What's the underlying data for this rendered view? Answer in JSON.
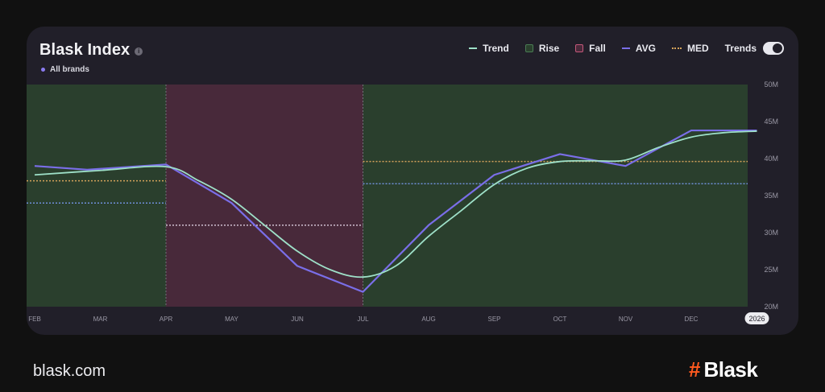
{
  "header": {
    "title": "Blask Index",
    "subtitle": "All brands",
    "info_icon": "info-icon"
  },
  "legend": {
    "items": [
      {
        "label": "Trend",
        "color": "#9ee0c8",
        "kind": "line"
      },
      {
        "label": "Rise",
        "color": "#4a7c54",
        "kind": "box"
      },
      {
        "label": "Fall",
        "color": "#c4587a",
        "kind": "box"
      },
      {
        "label": "AVG",
        "color": "#7a6ee8",
        "kind": "line"
      },
      {
        "label": "MED",
        "color": "#d4a25a",
        "kind": "dash"
      }
    ],
    "toggle_label": "Trends",
    "toggle_on": true
  },
  "footer": {
    "site": "blask.com",
    "brand_symbol": "#",
    "brand_name": "Blask"
  },
  "chart_data": {
    "type": "line",
    "title": "Blask Index",
    "x_tick_labels": [
      "FEB",
      "MAR",
      "APR",
      "MAY",
      "JUN",
      "JUL",
      "AUG",
      "SEP",
      "OCT",
      "NOV",
      "DEC",
      "2026"
    ],
    "y_tick_labels": [
      "50M",
      "45M",
      "40M",
      "35M",
      "30M",
      "25M",
      "20M"
    ],
    "ylim": [
      20,
      50
    ],
    "y_unit": "M",
    "series": [
      {
        "name": "All brands",
        "color": "#7a6ee8",
        "points": [
          [
            0,
            39.0
          ],
          [
            0.8,
            38.5
          ],
          [
            2,
            39.2
          ],
          [
            3,
            34.0
          ],
          [
            4,
            25.5
          ],
          [
            5,
            22.0
          ],
          [
            6,
            31.0
          ],
          [
            7,
            37.8
          ],
          [
            8,
            40.6
          ],
          [
            9,
            39.0
          ],
          [
            10,
            43.8
          ],
          [
            11,
            43.8
          ]
        ]
      },
      {
        "name": "Trend",
        "color": "#9ee0c8",
        "points": [
          [
            0,
            37.8
          ],
          [
            1,
            38.4
          ],
          [
            2,
            38.9
          ],
          [
            2.5,
            37.0
          ],
          [
            3,
            34.5
          ],
          [
            3.5,
            31.0
          ],
          [
            4,
            27.5
          ],
          [
            4.5,
            25.0
          ],
          [
            5,
            24.0
          ],
          [
            5.5,
            25.5
          ],
          [
            6,
            29.5
          ],
          [
            6.5,
            33.0
          ],
          [
            7,
            36.5
          ],
          [
            7.5,
            38.7
          ],
          [
            8,
            39.6
          ],
          [
            8.5,
            39.7
          ],
          [
            9,
            39.8
          ],
          [
            9.5,
            41.5
          ],
          [
            10,
            42.9
          ],
          [
            10.5,
            43.5
          ],
          [
            11,
            43.7
          ]
        ]
      }
    ],
    "regions": [
      {
        "type": "Rise",
        "from": 0,
        "to": 2,
        "color": "#2a3f2d",
        "avg": 34.0,
        "med": 37.0
      },
      {
        "type": "Fall",
        "from": 2,
        "to": 5,
        "color": "#48293a",
        "avg": 31.0,
        "med": 31.0
      },
      {
        "type": "Rise",
        "from": 5,
        "to": 11,
        "color": "#2a3f2d",
        "avg": 36.6,
        "med": 39.6
      }
    ],
    "grid": false,
    "legend_position": "top-right"
  }
}
